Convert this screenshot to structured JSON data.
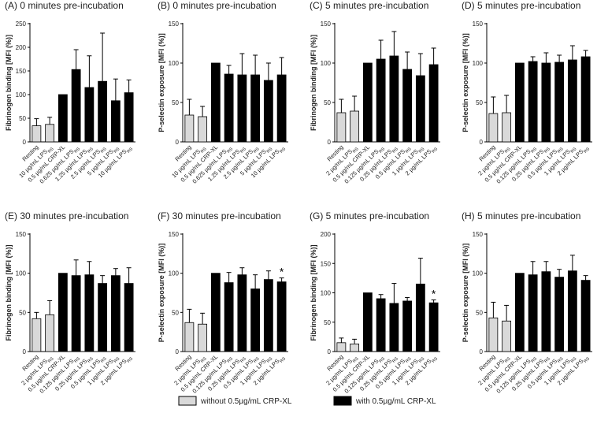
{
  "chart_data": [
    {
      "type": "bar",
      "panel": "(A)",
      "title": "0 minutes pre-incubation",
      "ylabel": "Fibrinogen binding [MFI (%)]",
      "ylim": [
        0,
        250
      ],
      "yticks": [
        0,
        50,
        100,
        150,
        200,
        250
      ],
      "categories": [
        "Resting",
        "10 µg/mL LPS",
        "0.5 µg/mL CRP-XL",
        "0.625 µg/mL LPS",
        "1.25 µg/mL LPS",
        "2.5 µg/mL LPS",
        "5 µg/mL LPS",
        "10 µg/mL LPS"
      ],
      "subscripts": [
        "",
        "RS",
        "",
        "RS",
        "RS",
        "RS",
        "RS",
        "RS"
      ],
      "values": [
        34,
        37,
        100,
        153,
        115,
        128,
        87,
        104
      ],
      "errors": [
        15,
        15,
        0,
        42,
        67,
        102,
        46,
        27
      ],
      "groups": [
        "without",
        "without",
        "with",
        "with",
        "with",
        "with",
        "with",
        "with"
      ],
      "significant": [
        false,
        false,
        false,
        false,
        false,
        false,
        false,
        false
      ]
    },
    {
      "type": "bar",
      "panel": "(B)",
      "title": "0 minutes pre-incubation",
      "ylabel": "P-selectin exposure [MFI (%)]",
      "ylim": [
        0,
        150
      ],
      "yticks": [
        0,
        50,
        100,
        150
      ],
      "categories": [
        "Resting",
        "10 µg/mL LPS",
        "0.5 µg/mL CRP-XL",
        "0.625 µg/mL LPS",
        "1.25 µg/mL LPS",
        "2.5 µg/mL LPS",
        "5 µg/mL LPS",
        "10 µg/mL LPS"
      ],
      "subscripts": [
        "",
        "RS",
        "",
        "RS",
        "RS",
        "RS",
        "RS",
        "RS"
      ],
      "values": [
        34,
        32,
        100,
        86,
        85,
        85,
        78,
        85
      ],
      "errors": [
        20,
        13,
        0,
        11,
        27,
        25,
        22,
        22
      ],
      "groups": [
        "without",
        "without",
        "with",
        "with",
        "with",
        "with",
        "with",
        "with"
      ],
      "significant": [
        false,
        false,
        false,
        false,
        false,
        false,
        false,
        false
      ]
    },
    {
      "type": "bar",
      "panel": "(C)",
      "title": "5 minutes pre-incubation",
      "ylabel": "Fibrinogen binding [MFI (%)]",
      "ylim": [
        0,
        150
      ],
      "yticks": [
        0,
        50,
        100,
        150
      ],
      "categories": [
        "Resting",
        "2 µg/mL LPS",
        "0.5 µg/mL CRP-XL",
        "0.125 µg/mL LPS",
        "0.25 µg/mL LPS",
        "0.5 µg/mL LPS",
        "1 µg/mL LPS",
        "2 µg/mL LPS"
      ],
      "subscripts": [
        "",
        "RS",
        "",
        "RS",
        "RS",
        "RS",
        "RS",
        "RS"
      ],
      "values": [
        37,
        39,
        100,
        105,
        109,
        92,
        84,
        98
      ],
      "errors": [
        17,
        19,
        0,
        24,
        31,
        22,
        28,
        21
      ],
      "groups": [
        "without",
        "without",
        "with",
        "with",
        "with",
        "with",
        "with",
        "with"
      ],
      "significant": [
        false,
        false,
        false,
        false,
        false,
        false,
        false,
        false
      ]
    },
    {
      "type": "bar",
      "panel": "(D)",
      "title": "5 minutes pre-incubation",
      "ylabel": "P-selectin exposure [MFI (%)]",
      "ylim": [
        0,
        150
      ],
      "yticks": [
        0,
        50,
        100,
        150
      ],
      "categories": [
        "Resting",
        "2 µg/mL LPS",
        "0.5 µg/mL CRP-XL",
        "0.125 µg/mL LPS",
        "0.25 µg/mL LPS",
        "0.5 µg/mL LPS",
        "1 µg/mL LPS",
        "2 µg/mL LPS"
      ],
      "subscripts": [
        "",
        "RS",
        "",
        "RS",
        "RS",
        "RS",
        "RS",
        "RS"
      ],
      "values": [
        36,
        37,
        100,
        102,
        100,
        101,
        104,
        108
      ],
      "errors": [
        21,
        22,
        0,
        6,
        13,
        9,
        18,
        8
      ],
      "groups": [
        "without",
        "without",
        "with",
        "with",
        "with",
        "with",
        "with",
        "with"
      ],
      "significant": [
        false,
        false,
        false,
        false,
        false,
        false,
        false,
        false
      ]
    },
    {
      "type": "bar",
      "panel": "(E)",
      "title": "30 minutes pre-incubation",
      "ylabel": "Fibrinogen binding [MFI (%)]",
      "ylim": [
        0,
        150
      ],
      "yticks": [
        0,
        50,
        100,
        150
      ],
      "categories": [
        "Resting",
        "2 µg/mL LPS",
        "0.5 µg/mL CRP-XL",
        "0.125 µg/mL LPS",
        "0.25 µg/mL LPS",
        "0.5 µg/mL LPS",
        "1 µg/mL LPS",
        "2 µg/mL LPS"
      ],
      "subscripts": [
        "",
        "RS",
        "",
        "RS",
        "RS",
        "RS",
        "RS",
        "RS"
      ],
      "values": [
        42,
        47,
        100,
        97,
        98,
        87,
        97,
        87
      ],
      "errors": [
        8,
        18,
        0,
        20,
        17,
        10,
        9,
        20
      ],
      "groups": [
        "without",
        "without",
        "with",
        "with",
        "with",
        "with",
        "with",
        "with"
      ],
      "significant": [
        false,
        false,
        false,
        false,
        false,
        false,
        false,
        false
      ]
    },
    {
      "type": "bar",
      "panel": "(F)",
      "title": "30 minutes pre-incubation",
      "ylabel": "P-selectin exposure [MFI (%)]",
      "ylim": [
        0,
        150
      ],
      "yticks": [
        0,
        50,
        100,
        150
      ],
      "categories": [
        "Resting",
        "2 µg/mL LPS",
        "0.5 µg/mL CRP-XL",
        "0.125 µg/mL LPS",
        "0.25 µg/mL LPS",
        "0.5 µg/mL LPS",
        "1 µg/mL LPS",
        "2 µg/mL LPS"
      ],
      "subscripts": [
        "",
        "RS",
        "",
        "RS",
        "RS",
        "RS",
        "RS",
        "RS"
      ],
      "values": [
        37,
        35,
        100,
        88,
        98,
        80,
        92,
        89
      ],
      "errors": [
        17,
        14,
        0,
        13,
        9,
        18,
        11,
        5
      ],
      "groups": [
        "without",
        "without",
        "with",
        "with",
        "with",
        "with",
        "with",
        "with"
      ],
      "significant": [
        false,
        false,
        false,
        false,
        false,
        false,
        false,
        true
      ]
    },
    {
      "type": "bar",
      "panel": "(G)",
      "title": "5 minutes pre-incubation",
      "ylabel": "Fibrinogen binding [MFI (%)]",
      "ylim": [
        0,
        200
      ],
      "yticks": [
        0,
        50,
        100,
        150,
        200
      ],
      "categories": [
        "Resting",
        "2 µg/mL LPS",
        "0.5 µg/mL CRP-XL",
        "0.125 µg/mL LPS",
        "0.25 µg/mL LPS",
        "0.5 µg/mL LPS",
        "1 µg/mL LPS",
        "2 µg/mL LPS"
      ],
      "subscripts": [
        "",
        "RS",
        "",
        "RS",
        "RS",
        "RS",
        "RS",
        "RS"
      ],
      "values": [
        15,
        13,
        100,
        90,
        82,
        86,
        115,
        83
      ],
      "errors": [
        8,
        8,
        0,
        7,
        34,
        6,
        44,
        5
      ],
      "groups": [
        "without",
        "without",
        "with",
        "with",
        "with",
        "with",
        "with",
        "with"
      ],
      "significant": [
        false,
        false,
        false,
        false,
        false,
        false,
        false,
        true
      ]
    },
    {
      "type": "bar",
      "panel": "(H)",
      "title": "5 minutes pre-incubation",
      "ylabel": "P-selectin exposure [MFI (%)]",
      "ylim": [
        0,
        150
      ],
      "yticks": [
        0,
        50,
        100,
        150
      ],
      "categories": [
        "Resting",
        "2 µg/mL LPS",
        "0.5 µg/mL CRP-XL",
        "0.125 µg/mL LPS",
        "0.25 µg/mL LPS",
        "0.5 µg/mL LPS",
        "1 µg/mL LPS",
        "2 µg/mL LPS"
      ],
      "subscripts": [
        "",
        "RS",
        "",
        "RS",
        "RS",
        "RS",
        "RS",
        "RS"
      ],
      "values": [
        43,
        39,
        100,
        98,
        102,
        95,
        103,
        91
      ],
      "errors": [
        20,
        20,
        0,
        17,
        13,
        10,
        20,
        6
      ],
      "groups": [
        "without",
        "without",
        "with",
        "with",
        "with",
        "with",
        "with",
        "with"
      ],
      "significant": [
        false,
        false,
        false,
        false,
        false,
        false,
        false,
        false
      ]
    }
  ],
  "legend": [
    {
      "label": "without 0.5µg/mL CRP-XL",
      "color": "#d9d9d9"
    },
    {
      "label": "with 0.5µg/mL CRP-XL",
      "color": "#000000"
    }
  ],
  "significance_marker": "*",
  "colors": {
    "without": "#d9d9d9",
    "with": "#000000",
    "axis": "#000000"
  }
}
